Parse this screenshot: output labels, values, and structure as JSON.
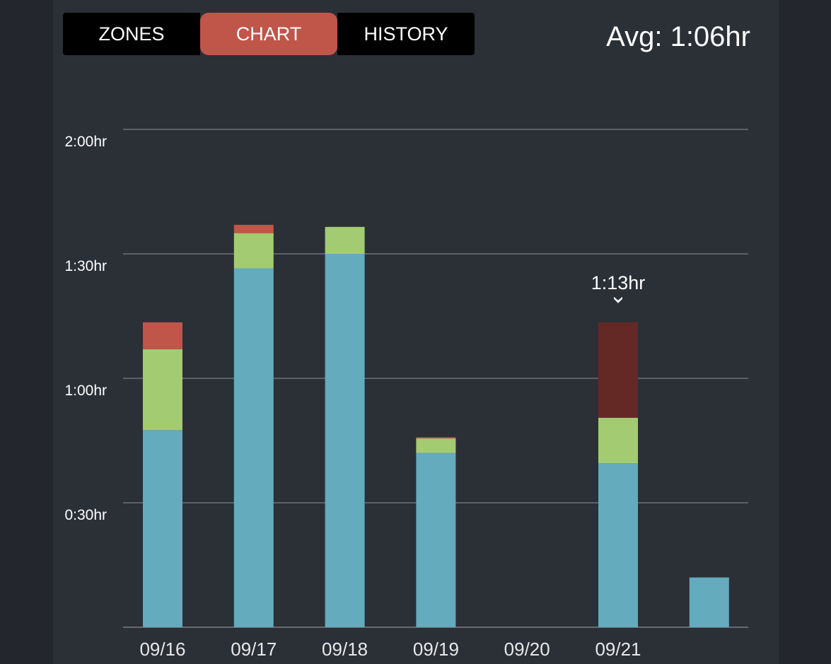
{
  "tabs": [
    {
      "label": "ZONES",
      "active": false
    },
    {
      "label": "CHART",
      "active": true
    },
    {
      "label": "HISTORY",
      "active": false
    }
  ],
  "avg_label": "Avg: 1:06hr",
  "colors": {
    "background": "#2b2f36",
    "tab_active": "#c0554a",
    "tab_inactive": "#000000",
    "zone_blue": "#63abbd",
    "zone_green": "#a3cb72",
    "zone_red": "#c0554a",
    "zone_red_selected": "#642925",
    "gridline": "#7a7f86"
  },
  "chart_data": {
    "type": "bar",
    "stacked": true,
    "categories": [
      "09/16",
      "09/17",
      "09/18",
      "09/19",
      "09/20",
      "09/21",
      ""
    ],
    "series": [
      {
        "color": "#63abbd",
        "values": [
          47.5,
          86.5,
          90,
          42,
          0,
          39.5,
          12
        ]
      },
      {
        "color": "#a3cb72",
        "values": [
          19.5,
          8.5,
          6.5,
          3.5,
          0,
          11,
          0
        ]
      },
      {
        "color": "#c0554a",
        "values": [
          6.5,
          2,
          0,
          0.3,
          0,
          23,
          0
        ]
      }
    ],
    "selected_index": 5,
    "selected_label": "1:13hr",
    "y_ticks": [
      {
        "value": 30,
        "label": "0:30hr"
      },
      {
        "value": 60,
        "label": "1:00hr"
      },
      {
        "value": 90,
        "label": "1:30hr"
      },
      {
        "value": 120,
        "label": "2:00hr"
      }
    ],
    "ylim": [
      0,
      120
    ],
    "y_unit": "minutes",
    "grid": true,
    "legend": "none"
  }
}
